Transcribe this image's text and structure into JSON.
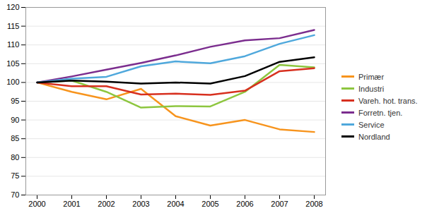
{
  "chart_data": {
    "type": "line",
    "categories": [
      "2000",
      "2001",
      "2002",
      "2003",
      "2004",
      "2005",
      "2006",
      "2007",
      "2008"
    ],
    "series": [
      {
        "name": "Primær",
        "color": "#f7941d",
        "values": [
          100,
          97.5,
          95.5,
          98.3,
          91,
          88.5,
          90,
          87.5,
          86.8
        ]
      },
      {
        "name": "Industri",
        "color": "#8dc63f",
        "values": [
          100,
          100.5,
          97.5,
          93.3,
          93.7,
          93.6,
          97.5,
          104.7,
          104
        ]
      },
      {
        "name": "Vareh. hot. trans.",
        "color": "#d7301f",
        "values": [
          100,
          99,
          99,
          96.8,
          97,
          96.7,
          97.8,
          103,
          103.8
        ]
      },
      {
        "name": "Forretn. tjen.",
        "color": "#7b2d8e",
        "values": [
          100,
          101.6,
          103.4,
          105.2,
          107.2,
          109.5,
          111.2,
          111.8,
          114
        ]
      },
      {
        "name": "Service",
        "color": "#4fa8dc",
        "values": [
          100,
          101,
          101.5,
          104.3,
          105.6,
          105.1,
          107,
          110.3,
          112.6
        ]
      },
      {
        "name": "Nordland",
        "color": "#000000",
        "values": [
          100,
          100.5,
          100.2,
          99.7,
          100,
          99.7,
          101.7,
          105.5,
          106.7
        ]
      }
    ],
    "ylim": [
      70,
      120
    ],
    "yticks": [
      70,
      75,
      80,
      85,
      90,
      95,
      100,
      105,
      110,
      115,
      120
    ],
    "grid": true,
    "legend": "right"
  }
}
